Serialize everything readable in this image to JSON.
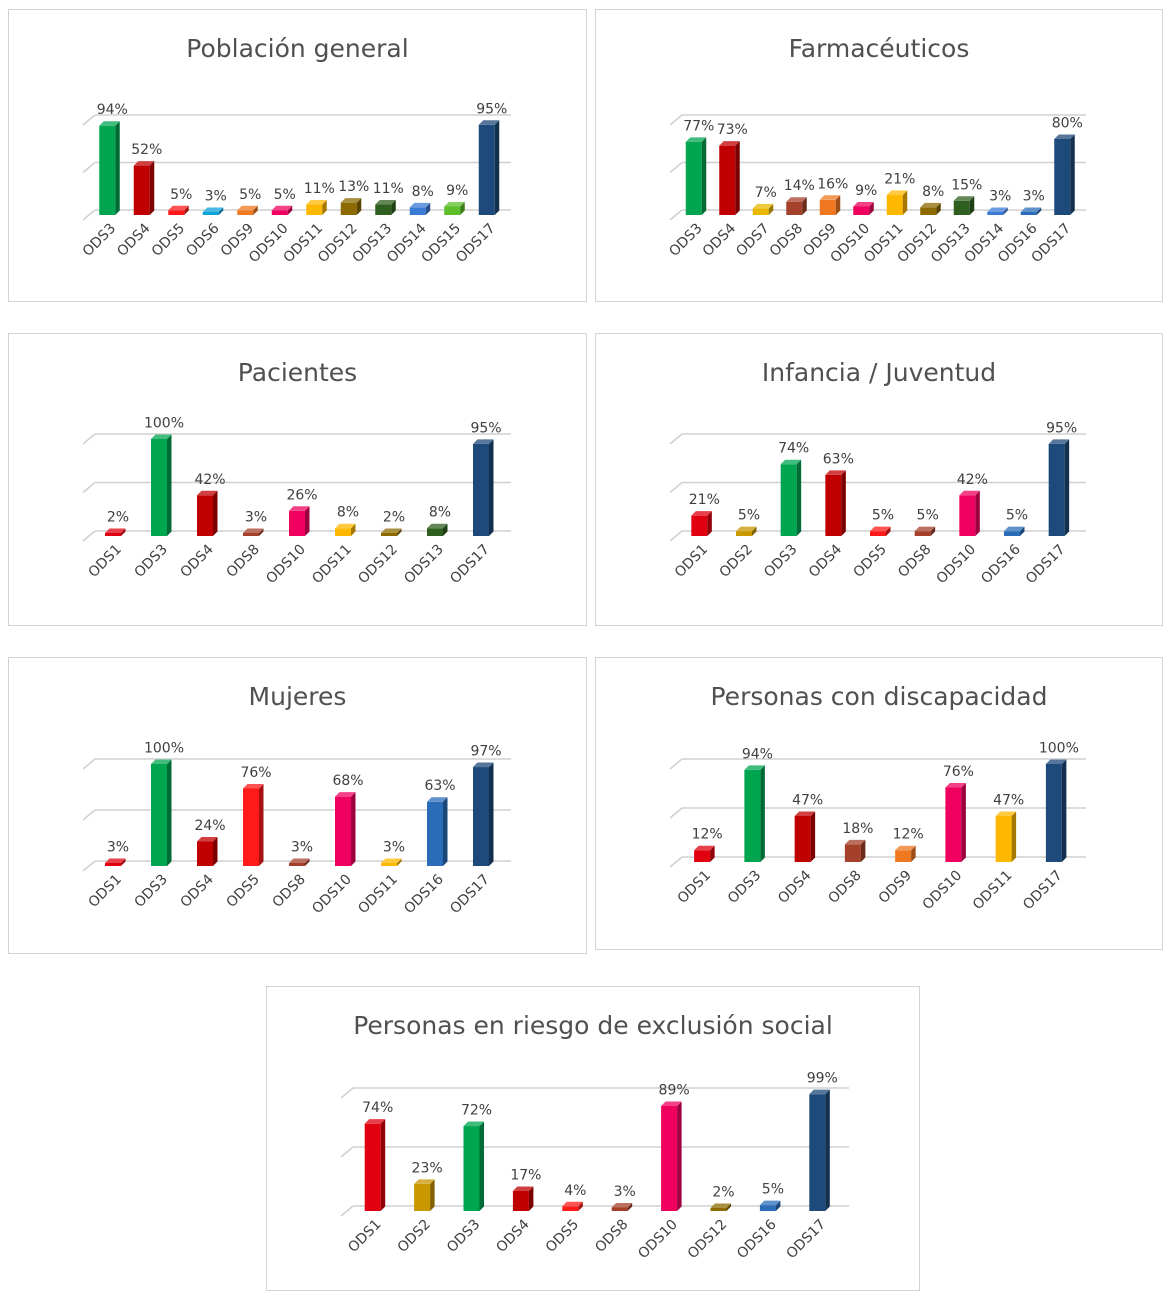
{
  "palette": {
    "ODS1": "#e0000f",
    "ODS2": "#c99700",
    "ODS3": "#00a550",
    "ODS4": "#c00000",
    "ODS5": "#ff1a1a",
    "ODS6": "#0aa2d8",
    "ODS7": "#e8b800",
    "ODS8": "#a5402a",
    "ODS9": "#f07820",
    "ODS10": "#f0005f",
    "ODS11": "#ffb800",
    "ODS12": "#8c6a00",
    "ODS13": "#2f5f1e",
    "ODS14": "#3a7bd5",
    "ODS15": "#5cbf2a",
    "ODS16": "#2a6cb8",
    "ODS17": "#1d4a7a"
  },
  "chart_data": [
    {
      "type": "bar",
      "title": "Población general",
      "categories": [
        "ODS3",
        "ODS4",
        "ODS5",
        "ODS6",
        "ODS9",
        "ODS10",
        "ODS11",
        "ODS12",
        "ODS13",
        "ODS14",
        "ODS15",
        "ODS17"
      ],
      "values": [
        94,
        52,
        5,
        3,
        5,
        5,
        11,
        13,
        11,
        8,
        9,
        95
      ],
      "labels": [
        "94%",
        "52%",
        "5%",
        "3%",
        "5%",
        "5%",
        "11%",
        "13%",
        "11%",
        "8%",
        "9%",
        "95%"
      ],
      "ylim": [
        0,
        100
      ],
      "grid": true
    },
    {
      "type": "bar",
      "title": "Farmacéuticos",
      "categories": [
        "ODS3",
        "ODS4",
        "ODS7",
        "ODS8",
        "ODS9",
        "ODS10",
        "ODS11",
        "ODS12",
        "ODS13",
        "ODS14",
        "ODS16",
        "ODS17"
      ],
      "values": [
        77,
        73,
        7,
        14,
        16,
        9,
        21,
        8,
        15,
        3,
        3,
        80
      ],
      "labels": [
        "77%",
        "73%",
        "7%",
        "14%",
        "16%",
        "9%",
        "21%",
        "8%",
        "15%",
        "3%",
        "3%",
        "80%"
      ],
      "ylim": [
        0,
        100
      ],
      "grid": true
    },
    {
      "type": "bar",
      "title": "Pacientes",
      "categories": [
        "ODS1",
        "ODS3",
        "ODS4",
        "ODS8",
        "ODS10",
        "ODS11",
        "ODS12",
        "ODS13",
        "ODS17"
      ],
      "values": [
        2,
        100,
        42,
        3,
        26,
        8,
        2,
        8,
        95
      ],
      "labels": [
        "2%",
        "100%",
        "42%",
        "3%",
        "26%",
        "8%",
        "2%",
        "8%",
        "95%"
      ],
      "ylim": [
        0,
        100
      ],
      "grid": true
    },
    {
      "type": "bar",
      "title": "Infancia / Juventud",
      "categories": [
        "ODS1",
        "ODS2",
        "ODS3",
        "ODS4",
        "ODS5",
        "ODS8",
        "ODS10",
        "ODS16",
        "ODS17"
      ],
      "values": [
        21,
        5,
        74,
        63,
        5,
        5,
        42,
        5,
        95
      ],
      "labels": [
        "21%",
        "5%",
        "74%",
        "63%",
        "5%",
        "5%",
        "42%",
        "5%",
        "95%"
      ],
      "ylim": [
        0,
        100
      ],
      "grid": true
    },
    {
      "type": "bar",
      "title": "Mujeres",
      "categories": [
        "ODS1",
        "ODS3",
        "ODS4",
        "ODS5",
        "ODS8",
        "ODS10",
        "ODS11",
        "ODS16",
        "ODS17"
      ],
      "values": [
        3,
        100,
        24,
        76,
        3,
        68,
        3,
        63,
        97
      ],
      "labels": [
        "3%",
        "100%",
        "24%",
        "76%",
        "3%",
        "68%",
        "3%",
        "63%",
        "97%"
      ],
      "ylim": [
        0,
        100
      ],
      "grid": true
    },
    {
      "type": "bar",
      "title": "Personas con discapacidad",
      "categories": [
        "ODS1",
        "ODS3",
        "ODS4",
        "ODS8",
        "ODS9",
        "ODS10",
        "ODS11",
        "ODS17"
      ],
      "values": [
        12,
        94,
        47,
        18,
        12,
        76,
        47,
        100
      ],
      "labels": [
        "12%",
        "94%",
        "47%",
        "18%",
        "12%",
        "76%",
        "47%",
        "100%"
      ],
      "ylim": [
        0,
        100
      ],
      "grid": true
    },
    {
      "type": "bar",
      "title": "Personas en riesgo de exclusión social",
      "categories": [
        "ODS1",
        "ODS2",
        "ODS3",
        "ODS4",
        "ODS5",
        "ODS8",
        "ODS10",
        "ODS12",
        "ODS16",
        "ODS17"
      ],
      "values": [
        74,
        23,
        72,
        17,
        4,
        3,
        89,
        2,
        5,
        99
      ],
      "labels": [
        "74%",
        "23%",
        "72%",
        "17%",
        "4%",
        "3%",
        "89%",
        "2%",
        "5%",
        "99%"
      ],
      "ylim": [
        0,
        100
      ],
      "grid": true
    }
  ]
}
